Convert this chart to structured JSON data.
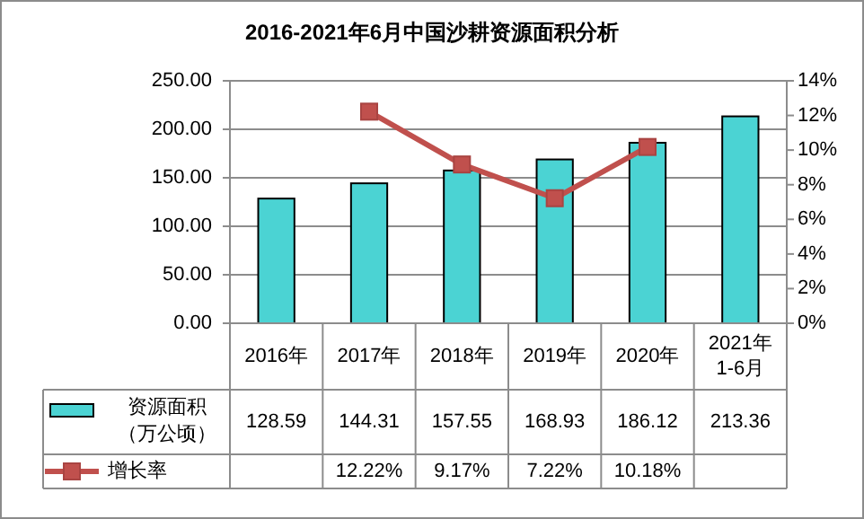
{
  "chart_data": {
    "type": "bar",
    "title": "2016-2021年6月中国沙耕资源面积分析",
    "categories": [
      "2016年",
      "2017年",
      "2018年",
      "2019年",
      "2020年",
      "2021年\n1-6月"
    ],
    "series": [
      {
        "name": "资源面积（万公顷）",
        "color": "#4bd3d3",
        "values": [
          128.59,
          144.31,
          157.55,
          168.93,
          186.12,
          213.36
        ],
        "value_labels": [
          "128.59",
          "144.31",
          "157.55",
          "168.93",
          "186.12",
          "213.36"
        ]
      },
      {
        "name": "增长率",
        "type": "line",
        "axis": "y2",
        "color": "#c0504d",
        "marker": "square",
        "values": [
          null,
          12.22,
          9.17,
          7.22,
          10.18,
          null
        ],
        "value_labels": [
          null,
          "12.22%",
          "9.17%",
          "7.22%",
          "10.18%",
          null
        ]
      }
    ],
    "ylim": [
      0,
      250
    ],
    "yticks": [
      {
        "value": 0,
        "label": "0.00"
      },
      {
        "value": 50,
        "label": "50.00"
      },
      {
        "value": 100,
        "label": "100.00"
      },
      {
        "value": 150,
        "label": "150.00"
      },
      {
        "value": 200,
        "label": "200.00"
      },
      {
        "value": 250,
        "label": "250.00"
      }
    ],
    "y2lim": [
      0,
      14
    ],
    "y2ticks": [
      {
        "value": 0,
        "label": "0%"
      },
      {
        "value": 2,
        "label": "2%"
      },
      {
        "value": 4,
        "label": "4%"
      },
      {
        "value": 6,
        "label": "6%"
      },
      {
        "value": 8,
        "label": "8%"
      },
      {
        "value": 10,
        "label": "10%"
      },
      {
        "value": 12,
        "label": "12%"
      },
      {
        "value": 14,
        "label": "14%"
      }
    ],
    "grid": "y",
    "legend": "bottom"
  }
}
